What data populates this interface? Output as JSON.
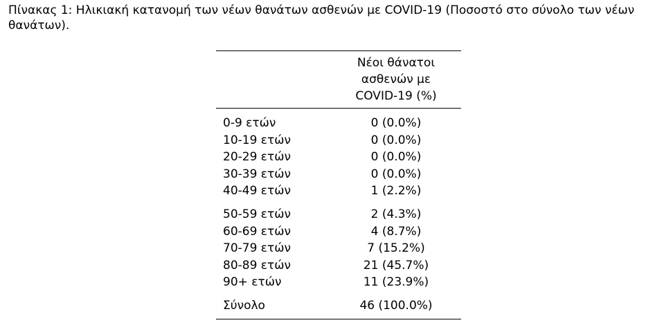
{
  "caption": {
    "line1": "Πίνακας 1: Ηλικιακή κατανομή των νέων θανάτων ασθενών με COVID-19 (Ποσοστό στο σύνολο των νέων",
    "line2": "θανάτων)."
  },
  "table": {
    "header": {
      "line1": "Νέοι θάνατοι",
      "line2": "ασθενών με",
      "line3": "COVID-19 (%)"
    },
    "group1": [
      {
        "label": "0-9 ετών",
        "value": "0 (0.0%)"
      },
      {
        "label": "10-19 ετών",
        "value": "0 (0.0%)"
      },
      {
        "label": "20-29 ετών",
        "value": "0 (0.0%)"
      },
      {
        "label": "30-39 ετών",
        "value": "0 (0.0%)"
      },
      {
        "label": "40-49 ετών",
        "value": "1 (2.2%)"
      }
    ],
    "group2": [
      {
        "label": "50-59 ετών",
        "value": "2 (4.3%)"
      },
      {
        "label": "60-69 ετών",
        "value": "4 (8.7%)"
      },
      {
        "label": "70-79 ετών",
        "value": "7 (15.2%)"
      },
      {
        "label": "80-89 ετών",
        "value": "21 (45.7%)"
      },
      {
        "label": "90+ ετών",
        "value": "11 (23.9%)"
      }
    ],
    "total": {
      "label": "Σύνολο",
      "value": "46 (100.0%)"
    }
  }
}
